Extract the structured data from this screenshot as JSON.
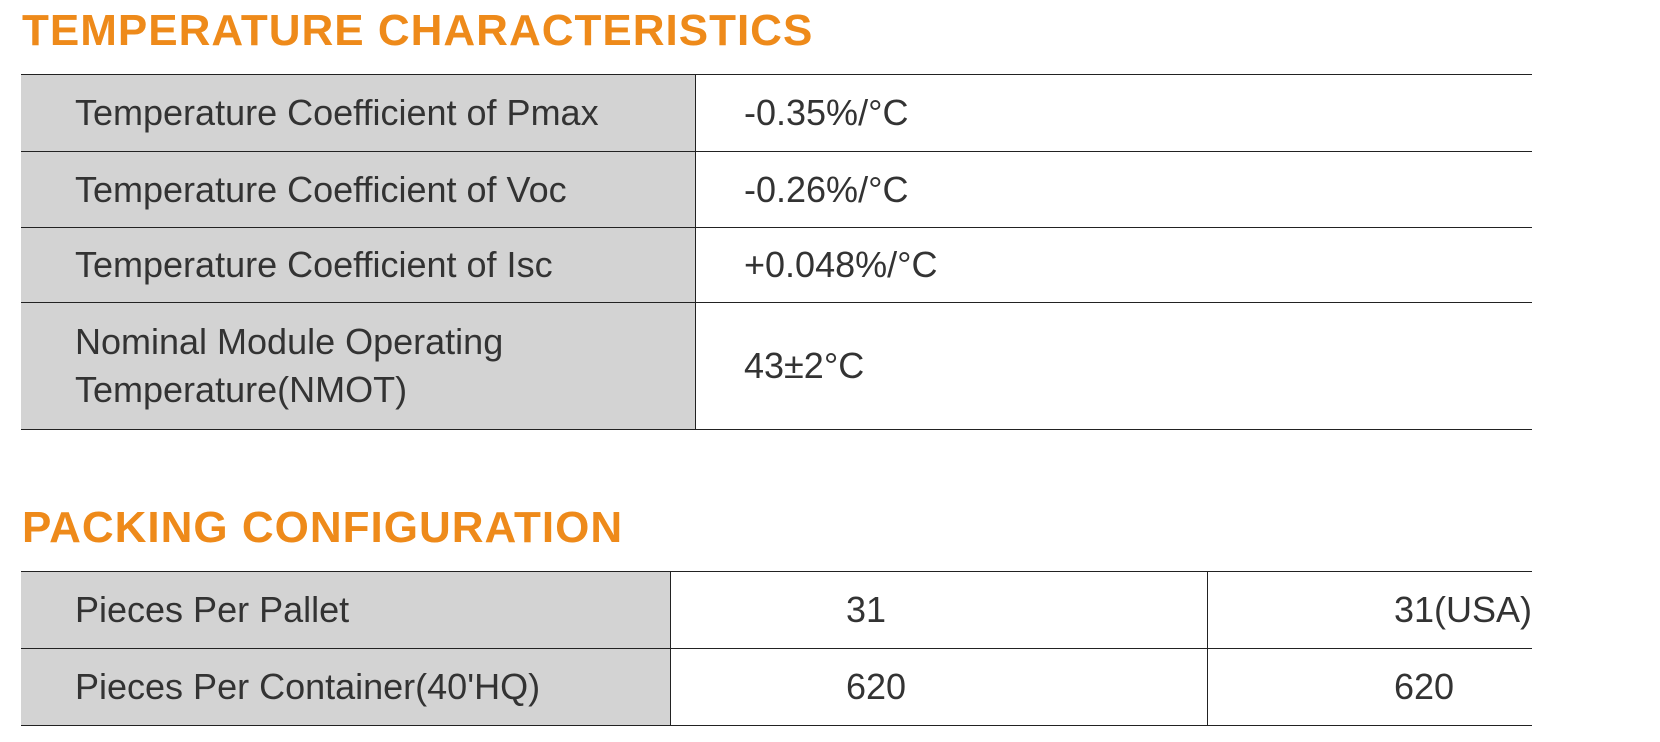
{
  "temperature": {
    "title": "TEMPERATURE CHARACTERISTICS",
    "rows": [
      [
        "Temperature Coefficient of Pmax",
        "-0.35%/°C"
      ],
      [
        "Temperature Coefficient of Voc",
        "-0.26%/°C"
      ],
      [
        "Temperature Coefficient of Isc",
        "+0.048%/°C"
      ],
      [
        "Nominal Module Operating Temperature(NMOT)",
        "43±2°C"
      ]
    ]
  },
  "packing": {
    "title": "PACKING CONFIGURATION",
    "rows": [
      [
        "Pieces Per Pallet",
        "31",
        "31(USA)"
      ],
      [
        "Pieces Per Container(40'HQ)",
        "620",
        "620"
      ]
    ]
  }
}
